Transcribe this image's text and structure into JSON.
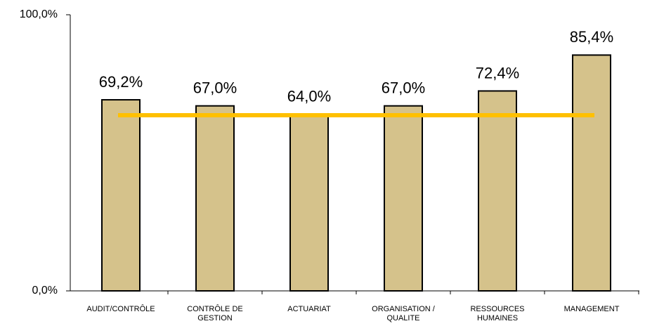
{
  "chart_data": {
    "type": "bar",
    "categories": [
      "AUDIT/CONTRÔLE",
      "CONTRÔLE DE GESTION",
      "ACTUARIAT",
      "ORGANISATION / QUALITE",
      "RESSOURCES HUMAINES",
      "MANAGEMENT"
    ],
    "values": [
      69.2,
      67.0,
      64.0,
      67.0,
      72.4,
      85.4
    ],
    "value_labels": [
      "69,2%",
      "67,0%",
      "64,0%",
      "67,0%",
      "72,4%",
      "85,4%"
    ],
    "color": "#d5c28b",
    "reference_line": {
      "value": 63.6,
      "color": "#ffc000"
    },
    "ylim": [
      0,
      100
    ],
    "yticks": [
      {
        "value": 0,
        "label": "0,0%"
      },
      {
        "value": 100,
        "label": "100,0%"
      }
    ]
  }
}
